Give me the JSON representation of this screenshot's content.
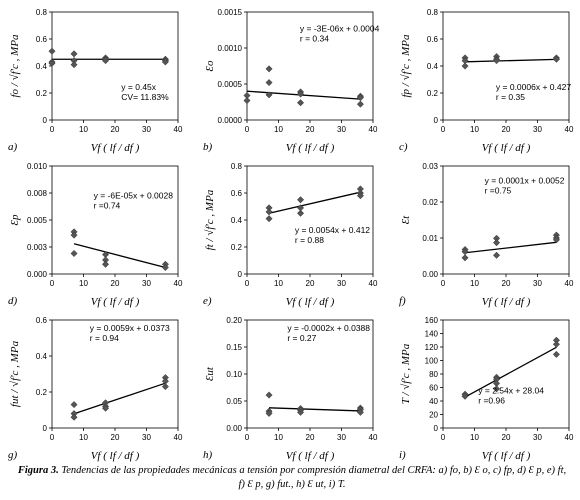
{
  "caption": {
    "label": "Figura 3.",
    "text": "Tendencias de las propiedades mecánicas a tensión por compresión diametral del CRFA: a) fo, b) Ɛ o, c) fp, d) Ɛ p, e) ft, f) Ɛ p, g) fut., h) Ɛ ut, i) T."
  },
  "chart_data": [
    {
      "id": "a",
      "panel_label": "a)",
      "type": "scatter",
      "xlabel": "Vf ( lf / df )",
      "ylabel": "fo / √f'c , MPa",
      "xlim": [
        0,
        40
      ],
      "ylim": [
        0,
        0.8
      ],
      "xticks": [
        "0",
        "10",
        "20",
        "30",
        "40"
      ],
      "yticks": [
        "0",
        "0.2",
        "0.4",
        "0.6",
        "0.8"
      ],
      "points": [
        [
          0,
          0.51
        ],
        [
          0,
          0.43
        ],
        [
          0,
          0.42
        ],
        [
          7,
          0.49
        ],
        [
          7,
          0.44
        ],
        [
          7,
          0.41
        ],
        [
          17,
          0.46
        ],
        [
          17,
          0.45
        ],
        [
          17,
          0.44
        ],
        [
          36,
          0.45
        ],
        [
          36,
          0.44
        ],
        [
          36,
          0.43
        ]
      ],
      "trend": [
        [
          0,
          0.45
        ],
        [
          36,
          0.45
        ]
      ],
      "equation": [
        "y = 0.45x",
        "CV= 11.83%"
      ]
    },
    {
      "id": "b",
      "panel_label": "b)",
      "type": "scatter",
      "xlabel": "Vf ( lf / df )",
      "ylabel": "Ɛo",
      "xlim": [
        0,
        40
      ],
      "ylim": [
        0,
        0.0015
      ],
      "xticks": [
        "0",
        "10",
        "20",
        "30",
        "40"
      ],
      "yticks": [
        "0.0000",
        "0.0005",
        "0.0010",
        "0.0015"
      ],
      "points": [
        [
          0,
          0.00034
        ],
        [
          0,
          0.00027
        ],
        [
          7,
          0.00071
        ],
        [
          7,
          0.00052
        ],
        [
          7,
          0.00035
        ],
        [
          17,
          0.00039
        ],
        [
          17,
          0.00036
        ],
        [
          17,
          0.00024
        ],
        [
          36,
          0.00033
        ],
        [
          36,
          0.00031
        ],
        [
          36,
          0.00022
        ]
      ],
      "trend": [
        [
          0,
          0.0004
        ],
        [
          36,
          0.00029
        ]
      ],
      "equation": [
        "y = -3E-06x + 0.0004",
        "r = 0.34"
      ]
    },
    {
      "id": "c",
      "panel_label": "c)",
      "type": "scatter",
      "xlabel": "Vf ( lf / df )",
      "ylabel": "fp / √f'c , MPa",
      "xlim": [
        0,
        40
      ],
      "ylim": [
        0,
        0.8
      ],
      "xticks": [
        "0",
        "10",
        "20",
        "30",
        "40"
      ],
      "yticks": [
        "0",
        "0.2",
        "0.4",
        "0.6",
        "0.8"
      ],
      "points": [
        [
          7,
          0.46
        ],
        [
          7,
          0.44
        ],
        [
          7,
          0.4
        ],
        [
          17,
          0.47
        ],
        [
          17,
          0.45
        ],
        [
          17,
          0.44
        ],
        [
          36,
          0.46
        ],
        [
          36,
          0.45
        ]
      ],
      "trend": [
        [
          7,
          0.431
        ],
        [
          36,
          0.449
        ]
      ],
      "equation": [
        "y = 0.0006x + 0.427",
        "r = 0.35"
      ]
    },
    {
      "id": "d",
      "panel_label": "d)",
      "type": "scatter",
      "xlabel": "Vf ( lf / df )",
      "ylabel": "Ɛp",
      "xlim": [
        0,
        40
      ],
      "ylim": [
        0,
        0.01
      ],
      "xticks": [
        "0",
        "10",
        "20",
        "30",
        "40"
      ],
      "yticks": [
        "0.000",
        "0.003",
        "0.005",
        "0.008",
        "0.010"
      ],
      "points": [
        [
          7,
          0.0039
        ],
        [
          7,
          0.0036
        ],
        [
          7,
          0.0019
        ],
        [
          17,
          0.0018
        ],
        [
          17,
          0.0013
        ],
        [
          17,
          0.0009
        ],
        [
          36,
          0.0009
        ],
        [
          36,
          0.0006
        ]
      ],
      "trend": [
        [
          7,
          0.0028
        ],
        [
          36,
          0.0006
        ]
      ],
      "equation": [
        "y = -6E-05x + 0.0028",
        "r =0.74"
      ]
    },
    {
      "id": "e",
      "panel_label": "e)",
      "type": "scatter",
      "xlabel": "Vf ( lf / df )",
      "ylabel": "ft / √f'c , MPa",
      "xlim": [
        0,
        40
      ],
      "ylim": [
        0,
        0.8
      ],
      "xticks": [
        "0",
        "10",
        "20",
        "30",
        "40"
      ],
      "yticks": [
        "0",
        "0.2",
        "0.4",
        "0.6",
        "0.8"
      ],
      "points": [
        [
          7,
          0.49
        ],
        [
          7,
          0.46
        ],
        [
          7,
          0.41
        ],
        [
          17,
          0.55
        ],
        [
          17,
          0.49
        ],
        [
          17,
          0.45
        ],
        [
          36,
          0.63
        ],
        [
          36,
          0.6
        ],
        [
          36,
          0.58
        ]
      ],
      "trend": [
        [
          7,
          0.45
        ],
        [
          36,
          0.606
        ]
      ],
      "equation": [
        "y = 0.0054x + 0.412",
        "r = 0.88"
      ]
    },
    {
      "id": "f",
      "panel_label": "f)",
      "type": "scatter",
      "xlabel": "Vf ( lf / df )",
      "ylabel": "Ɛt",
      "xlim": [
        0,
        40
      ],
      "ylim": [
        0,
        0.03
      ],
      "xticks": [
        "0",
        "10",
        "20",
        "30",
        "40"
      ],
      "yticks": [
        "0.00",
        "0.01",
        "0.02",
        "0.03"
      ],
      "points": [
        [
          7,
          0.0068
        ],
        [
          7,
          0.0062
        ],
        [
          7,
          0.0045
        ],
        [
          17,
          0.0099
        ],
        [
          17,
          0.0087
        ],
        [
          17,
          0.0052
        ],
        [
          36,
          0.0108
        ],
        [
          36,
          0.01
        ],
        [
          36,
          0.0095
        ]
      ],
      "trend": [
        [
          7,
          0.0059
        ],
        [
          36,
          0.0088
        ]
      ],
      "equation": [
        "y = 0.0001x + 0.0052",
        "r =0.75"
      ]
    },
    {
      "id": "g",
      "panel_label": "g)",
      "type": "scatter",
      "xlabel": "Vf ( lf / df )",
      "ylabel": "fut / √f'c , MPa",
      "xlim": [
        0,
        40
      ],
      "ylim": [
        0,
        0.6
      ],
      "xticks": [
        "0",
        "10",
        "20",
        "30",
        "40"
      ],
      "yticks": [
        "0",
        "0.2",
        "0.4",
        "0.6"
      ],
      "points": [
        [
          7,
          0.13
        ],
        [
          7,
          0.08
        ],
        [
          7,
          0.06
        ],
        [
          17,
          0.14
        ],
        [
          17,
          0.12
        ],
        [
          17,
          0.11
        ],
        [
          36,
          0.28
        ],
        [
          36,
          0.26
        ],
        [
          36,
          0.23
        ]
      ],
      "trend": [
        [
          7,
          0.079
        ],
        [
          36,
          0.249
        ]
      ],
      "equation": [
        "y = 0.0059x + 0.0373",
        "r = 0.94"
      ]
    },
    {
      "id": "h",
      "panel_label": "h)",
      "type": "scatter",
      "xlabel": "Vf ( lf / df )",
      "ylabel": "Ɛut",
      "xlim": [
        0,
        40
      ],
      "ylim": [
        0,
        0.2
      ],
      "xticks": [
        "0",
        "10",
        "20",
        "30",
        "40"
      ],
      "yticks": [
        "0.00",
        "0.05",
        "0.10",
        "0.15",
        "0.20"
      ],
      "points": [
        [
          7,
          0.061
        ],
        [
          7,
          0.031
        ],
        [
          7,
          0.027
        ],
        [
          17,
          0.036
        ],
        [
          17,
          0.033
        ],
        [
          17,
          0.029
        ],
        [
          36,
          0.037
        ],
        [
          36,
          0.034
        ],
        [
          36,
          0.029
        ]
      ],
      "trend": [
        [
          7,
          0.0374
        ],
        [
          36,
          0.0316
        ]
      ],
      "equation": [
        "y = -0.0002x + 0.0388",
        "r = 0.27"
      ]
    },
    {
      "id": "i",
      "panel_label": "i)",
      "type": "scatter",
      "xlabel": "Vf ( lf / df )",
      "ylabel": "T / √f'c , MPa",
      "xlim": [
        0,
        40
      ],
      "ylim": [
        0,
        160
      ],
      "xticks": [
        "0",
        "10",
        "20",
        "30",
        "40"
      ],
      "yticks": [
        "0",
        "20",
        "40",
        "60",
        "80",
        "100",
        "120",
        "140",
        "160"
      ],
      "points": [
        [
          7,
          50
        ],
        [
          7,
          47
        ],
        [
          17,
          75
        ],
        [
          17,
          72
        ],
        [
          17,
          66
        ],
        [
          17,
          58
        ],
        [
          36,
          130
        ],
        [
          36,
          124
        ],
        [
          36,
          109
        ]
      ],
      "trend": [
        [
          7,
          45.8
        ],
        [
          36,
          119.5
        ]
      ],
      "equation": [
        "y = 2.54x + 28.04",
        "r =0.96"
      ]
    }
  ]
}
